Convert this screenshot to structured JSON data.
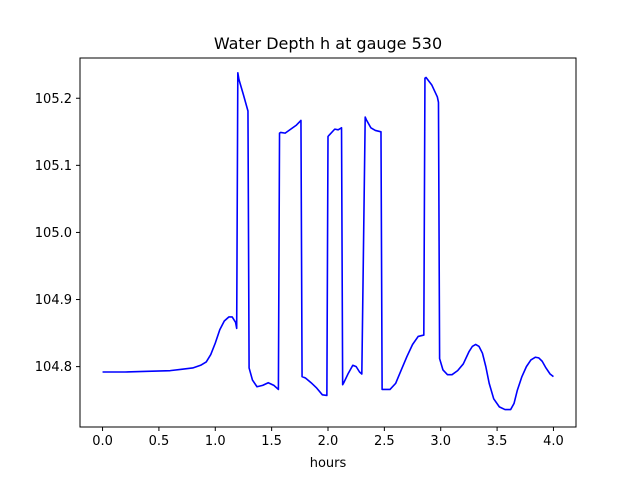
{
  "chart_data": {
    "type": "line",
    "title": "Water Depth h at gauge 530",
    "xlabel": "hours",
    "ylabel": "",
    "xlim": [
      -0.2,
      4.2
    ],
    "ylim": [
      104.71,
      105.26
    ],
    "grid": false,
    "legend": "none",
    "xticks": [
      {
        "value": 0.0,
        "label": "0.0"
      },
      {
        "value": 0.5,
        "label": "0.5"
      },
      {
        "value": 1.0,
        "label": "1.0"
      },
      {
        "value": 1.5,
        "label": "1.5"
      },
      {
        "value": 2.0,
        "label": "2.0"
      },
      {
        "value": 2.5,
        "label": "2.5"
      },
      {
        "value": 3.0,
        "label": "3.0"
      },
      {
        "value": 3.5,
        "label": "3.5"
      },
      {
        "value": 4.0,
        "label": "4.0"
      }
    ],
    "yticks": [
      {
        "value": 104.8,
        "label": "104.8"
      },
      {
        "value": 104.9,
        "label": "104.9"
      },
      {
        "value": 105.0,
        "label": "105.0"
      },
      {
        "value": 105.1,
        "label": "105.1"
      },
      {
        "value": 105.2,
        "label": "105.2"
      }
    ],
    "series": [
      {
        "color": "#0000ff",
        "x": [
          0.0,
          0.2,
          0.4,
          0.6,
          0.7,
          0.8,
          0.87,
          0.92,
          0.96,
          1.0,
          1.04,
          1.08,
          1.12,
          1.15,
          1.18,
          1.19,
          1.2,
          1.21,
          1.25,
          1.29,
          1.3,
          1.33,
          1.37,
          1.42,
          1.47,
          1.52,
          1.56,
          1.57,
          1.58,
          1.62,
          1.67,
          1.72,
          1.76,
          1.77,
          1.8,
          1.85,
          1.9,
          1.95,
          1.99,
          2.0,
          2.01,
          2.06,
          2.09,
          2.12,
          2.13,
          2.14,
          2.18,
          2.22,
          2.25,
          2.28,
          2.3,
          2.33,
          2.34,
          2.38,
          2.42,
          2.47,
          2.48,
          2.5,
          2.55,
          2.6,
          2.65,
          2.7,
          2.75,
          2.8,
          2.85,
          2.86,
          2.87,
          2.92,
          2.97,
          2.98,
          2.99,
          3.02,
          3.06,
          3.1,
          3.15,
          3.2,
          3.25,
          3.28,
          3.31,
          3.34,
          3.37,
          3.4,
          3.43,
          3.47,
          3.52,
          3.57,
          3.62,
          3.65,
          3.68,
          3.72,
          3.76,
          3.8,
          3.84,
          3.87,
          3.9,
          3.93,
          3.97,
          4.0
        ],
        "y": [
          104.792,
          104.792,
          104.793,
          104.794,
          104.796,
          104.798,
          104.802,
          104.807,
          104.818,
          104.835,
          104.855,
          104.868,
          104.874,
          104.874,
          104.866,
          104.857,
          105.238,
          105.228,
          105.205,
          105.181,
          104.798,
          104.78,
          104.77,
          104.772,
          104.776,
          104.772,
          104.766,
          105.148,
          105.149,
          105.148,
          105.154,
          105.16,
          105.167,
          104.785,
          104.783,
          104.776,
          104.768,
          104.758,
          104.757,
          105.143,
          105.145,
          105.154,
          105.153,
          105.156,
          104.773,
          104.776,
          104.79,
          104.802,
          104.8,
          104.792,
          104.789,
          105.172,
          105.168,
          105.156,
          105.152,
          105.15,
          104.766,
          104.766,
          104.766,
          104.775,
          104.795,
          104.815,
          104.833,
          104.845,
          104.847,
          105.23,
          105.231,
          105.22,
          105.202,
          105.194,
          104.812,
          104.795,
          104.788,
          104.788,
          104.794,
          104.804,
          104.822,
          104.83,
          104.833,
          104.83,
          104.82,
          104.8,
          104.775,
          104.752,
          104.74,
          104.736,
          104.736,
          104.745,
          104.765,
          104.785,
          104.8,
          104.81,
          104.814,
          104.813,
          104.808,
          104.799,
          104.789,
          104.785
        ]
      }
    ]
  }
}
